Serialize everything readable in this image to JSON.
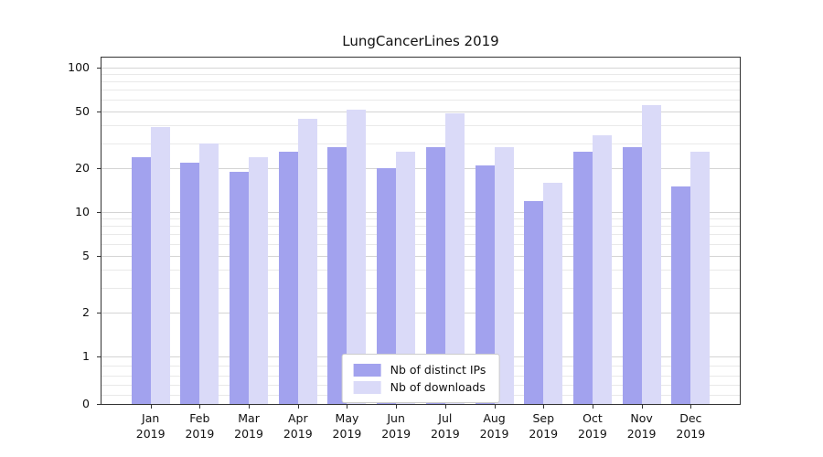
{
  "title": "LungCancerLines 2019",
  "chart_data": {
    "type": "bar",
    "title": "LungCancerLines 2019",
    "categories": [
      "Jan",
      "Feb",
      "Mar",
      "Apr",
      "May",
      "Jun",
      "Jul",
      "Aug",
      "Sep",
      "Oct",
      "Nov",
      "Dec"
    ],
    "year_label": "2019",
    "series": [
      {
        "name": "Nb of distinct IPs",
        "color": "#a2a2ee",
        "values": [
          24,
          22,
          19,
          26,
          28,
          20,
          28,
          21,
          12,
          26,
          28,
          15
        ]
      },
      {
        "name": "Nb of downloads",
        "color": "#dadaf8",
        "values": [
          39,
          30,
          24,
          44,
          51,
          26,
          48,
          28,
          16,
          34,
          55,
          26
        ]
      }
    ],
    "yscale": "symlog",
    "yticks": [
      0,
      1,
      2,
      5,
      10,
      20,
      50,
      100
    ],
    "minor_yticks": [
      0.2,
      0.4,
      0.6,
      0.8,
      3,
      4,
      6,
      7,
      8,
      9,
      30,
      40,
      60,
      70,
      80,
      90
    ],
    "ylim": [
      0,
      115
    ],
    "grid": "horizontal",
    "legend_position": "lower center"
  }
}
